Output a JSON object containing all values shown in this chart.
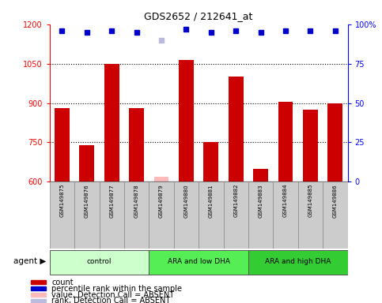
{
  "title": "GDS2652 / 212641_at",
  "samples": [
    "GSM149875",
    "GSM149876",
    "GSM149877",
    "GSM149878",
    "GSM149879",
    "GSM149880",
    "GSM149881",
    "GSM149882",
    "GSM149883",
    "GSM149884",
    "GSM149885",
    "GSM149886"
  ],
  "counts": [
    880,
    740,
    1050,
    880,
    618,
    1065,
    750,
    1000,
    650,
    905,
    875,
    900
  ],
  "absent": [
    false,
    false,
    false,
    false,
    true,
    false,
    false,
    false,
    false,
    false,
    false,
    false
  ],
  "percentile_ranks": [
    96,
    95,
    96,
    95,
    90,
    97,
    95,
    96,
    95,
    96,
    96,
    96
  ],
  "absent_rank_pct": 90,
  "groups": [
    {
      "label": "control",
      "start": 0,
      "end": 4,
      "color": "#ccffcc"
    },
    {
      "label": "ARA and low DHA",
      "start": 4,
      "end": 8,
      "color": "#66ee66"
    },
    {
      "label": "ARA and high DHA",
      "start": 8,
      "end": 12,
      "color": "#33dd33"
    }
  ],
  "ylim_left": [
    600,
    1200
  ],
  "ylim_right": [
    0,
    100
  ],
  "yticks_left": [
    600,
    750,
    900,
    1050,
    1200
  ],
  "yticks_right": [
    0,
    25,
    50,
    75,
    100
  ],
  "bar_color_present": "#cc0000",
  "bar_color_absent": "#ffbbbb",
  "dot_color_present": "#0000cc",
  "dot_color_absent": "#bbbbdd",
  "background_color": "#ffffff",
  "plot_bg_color": "#ffffff",
  "legend_items": [
    {
      "color": "#cc0000",
      "label": "count"
    },
    {
      "color": "#0000cc",
      "label": "percentile rank within the sample"
    },
    {
      "color": "#ffbbbb",
      "label": "value, Detection Call = ABSENT"
    },
    {
      "color": "#bbbbdd",
      "label": "rank, Detection Call = ABSENT"
    }
  ]
}
